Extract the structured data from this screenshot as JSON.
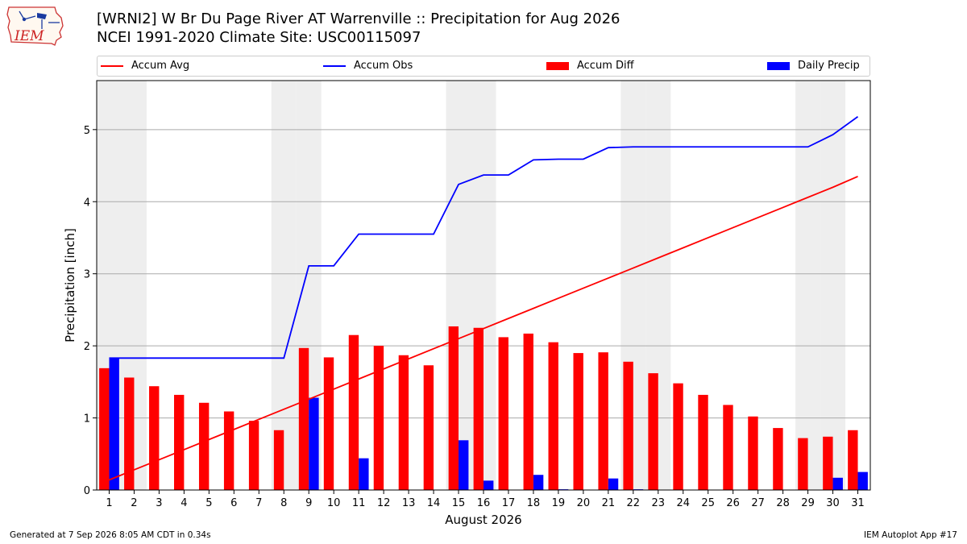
{
  "header": {
    "title_line1": "[WRNI2] W Br Du Page River  AT Warrenville :: Precipitation for Aug 2026",
    "title_line2": "NCEI 1991-2020 Climate Site: USC00115097"
  },
  "logo": {
    "text": "IEM",
    "icon": "iowa-state-outline-icon"
  },
  "legend": {
    "accum_avg": "Accum Avg",
    "accum_obs": "Accum Obs",
    "accum_diff": "Accum Diff",
    "daily_precip": "Daily Precip"
  },
  "footer": {
    "generated": "Generated at 7 Sep 2026 8:05 AM CDT in 0.34s",
    "app": "IEM Autoplot App #17"
  },
  "colors": {
    "avg": "#ff0000",
    "obs": "#0000ff",
    "diff": "#ff0000",
    "daily": "#0000ff",
    "weekend_band": "#eeeeee",
    "grid": "#aaaaaa"
  },
  "chart_data": {
    "type": "bar",
    "xlabel": "August 2026",
    "ylabel": "Precipitation [inch]",
    "ylim": [
      0,
      5.68
    ],
    "xlim": [
      0.5,
      31.5
    ],
    "yticks": [
      0,
      1,
      2,
      3,
      4,
      5
    ],
    "grid": true,
    "legend_position": "top",
    "categories": [
      1,
      2,
      3,
      4,
      5,
      6,
      7,
      8,
      9,
      10,
      11,
      12,
      13,
      14,
      15,
      16,
      17,
      18,
      19,
      20,
      21,
      22,
      23,
      24,
      25,
      26,
      27,
      28,
      29,
      30,
      31
    ],
    "weekend_days": [
      1,
      2,
      8,
      9,
      15,
      16,
      22,
      23,
      29,
      30
    ],
    "series": [
      {
        "name": "Accum Avg",
        "kind": "line",
        "values": [
          0.14,
          0.28,
          0.42,
          0.56,
          0.7,
          0.84,
          0.98,
          1.12,
          1.26,
          1.4,
          1.54,
          1.68,
          1.82,
          1.96,
          2.1,
          2.24,
          2.38,
          2.52,
          2.66,
          2.8,
          2.94,
          3.08,
          3.22,
          3.36,
          3.5,
          3.64,
          3.78,
          3.92,
          4.06,
          4.2,
          4.35
        ]
      },
      {
        "name": "Accum Obs",
        "kind": "line",
        "values": [
          1.83,
          1.83,
          1.83,
          1.83,
          1.83,
          1.83,
          1.83,
          1.83,
          3.11,
          3.11,
          3.55,
          3.55,
          3.55,
          3.55,
          4.24,
          4.37,
          4.37,
          4.58,
          4.59,
          4.59,
          4.75,
          4.76,
          4.76,
          4.76,
          4.76,
          4.76,
          4.76,
          4.76,
          4.76,
          4.93,
          5.18
        ]
      },
      {
        "name": "Accum Diff",
        "kind": "bar",
        "values": [
          1.69,
          1.56,
          1.44,
          1.32,
          1.21,
          1.09,
          0.96,
          0.83,
          1.97,
          1.84,
          2.15,
          2.0,
          1.87,
          1.73,
          2.27,
          2.25,
          2.12,
          2.17,
          2.05,
          1.9,
          1.91,
          1.78,
          1.62,
          1.48,
          1.32,
          1.18,
          1.02,
          0.86,
          0.72,
          0.74,
          0.83
        ]
      },
      {
        "name": "Daily Precip",
        "kind": "bar",
        "values": [
          1.83,
          0,
          0,
          0,
          0,
          0,
          0,
          0,
          1.28,
          0,
          0.44,
          0,
          0,
          0,
          0.69,
          0.13,
          0,
          0.21,
          0.01,
          0,
          0.16,
          0.01,
          0,
          0,
          0,
          0,
          0,
          0,
          0,
          0.17,
          0.25
        ]
      }
    ]
  }
}
